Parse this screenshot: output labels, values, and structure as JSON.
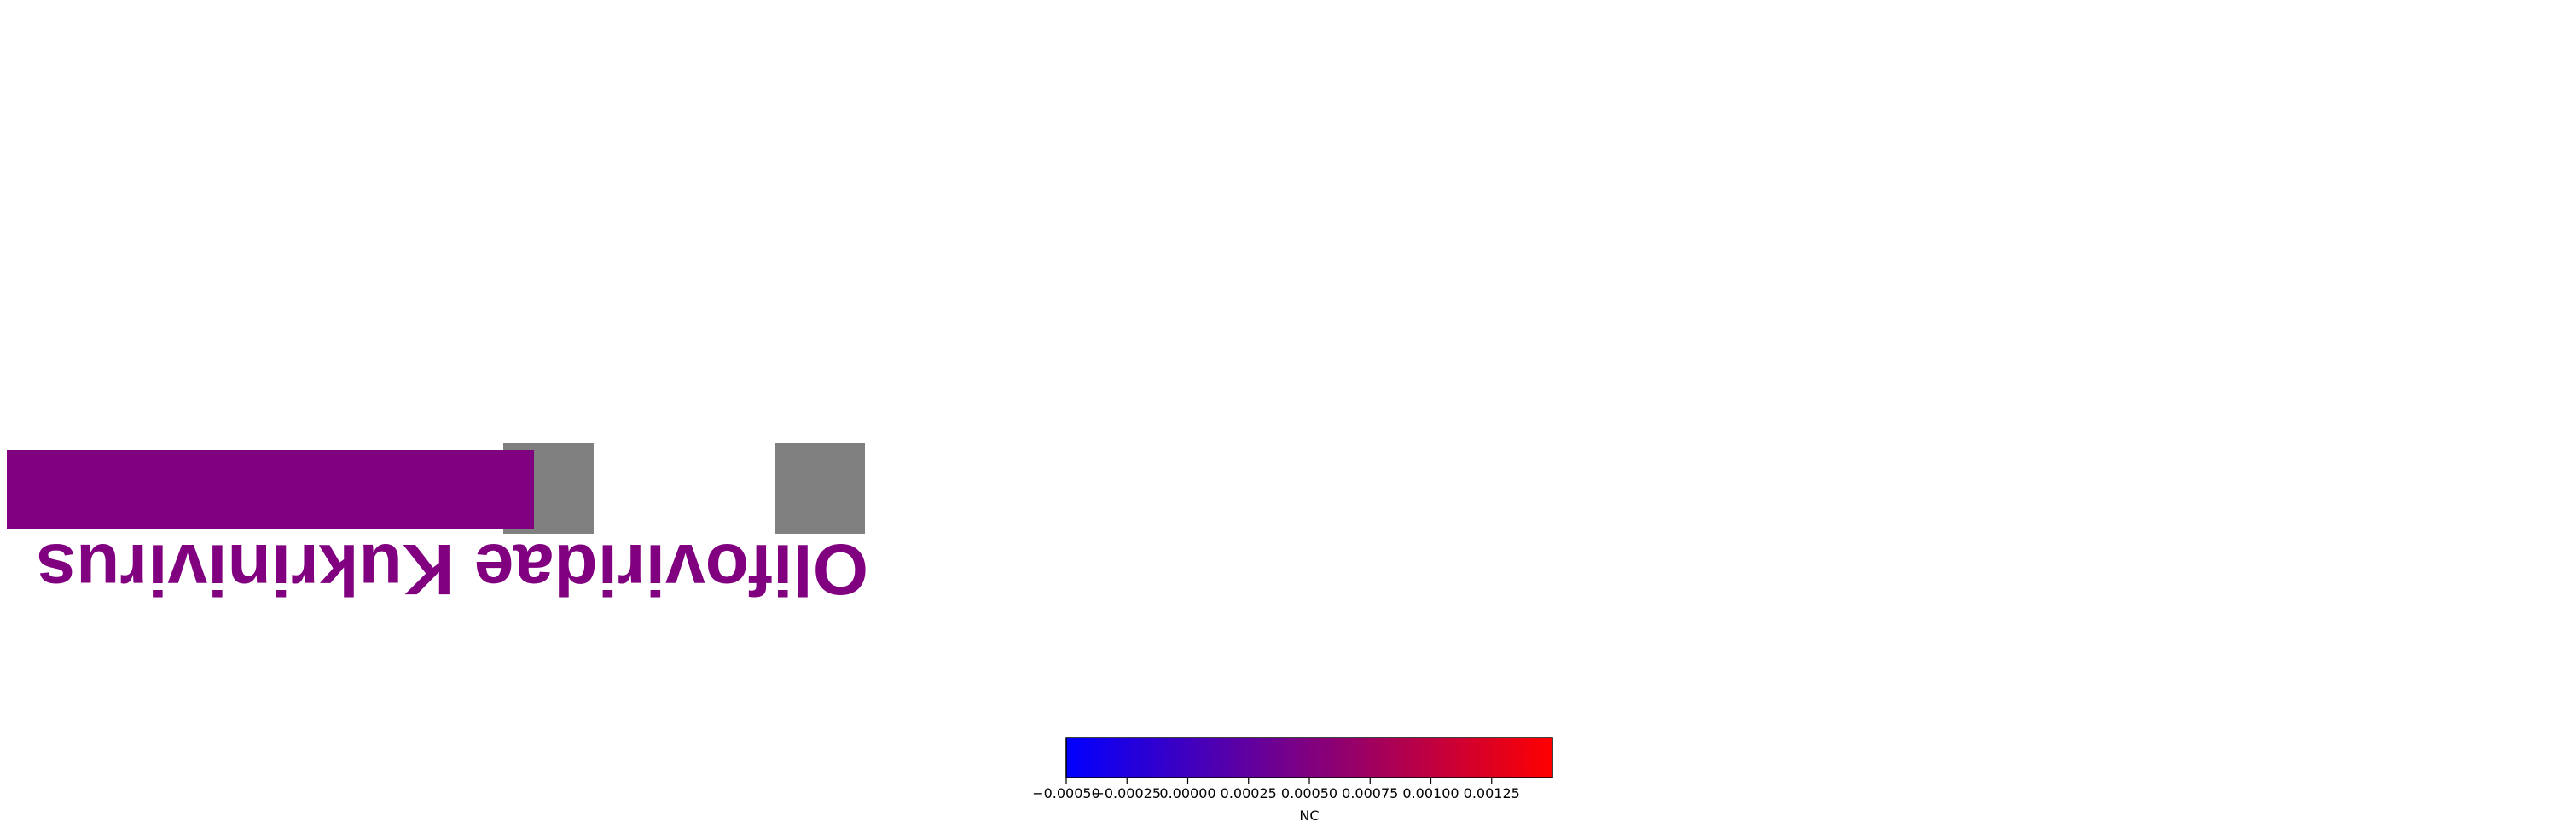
{
  "chart_data": {
    "type": "heatmap",
    "tiles": [
      {
        "color": "#800080"
      },
      {
        "color": "#808080"
      },
      {
        "color": "#808080"
      }
    ],
    "labels_rotated_180": true,
    "label_text": "Olifoviridae Kukrinivirus",
    "label_color": "#800080",
    "colorbar": {
      "label": "NC",
      "min": -0.0005,
      "max": 0.0015,
      "colors": [
        "#0000ff",
        "#800080",
        "#ff0000"
      ],
      "ticks": [
        {
          "value": -0.0005,
          "label": "−0.00050"
        },
        {
          "value": -0.00025,
          "label": "−0.00025"
        },
        {
          "value": 0.0,
          "label": "0.00000"
        },
        {
          "value": 0.00025,
          "label": "0.00025"
        },
        {
          "value": 0.0005,
          "label": "0.00050"
        },
        {
          "value": 0.00075,
          "label": "0.00075"
        },
        {
          "value": 0.001,
          "label": "0.00100"
        },
        {
          "value": 0.00125,
          "label": "0.00125"
        }
      ]
    }
  }
}
